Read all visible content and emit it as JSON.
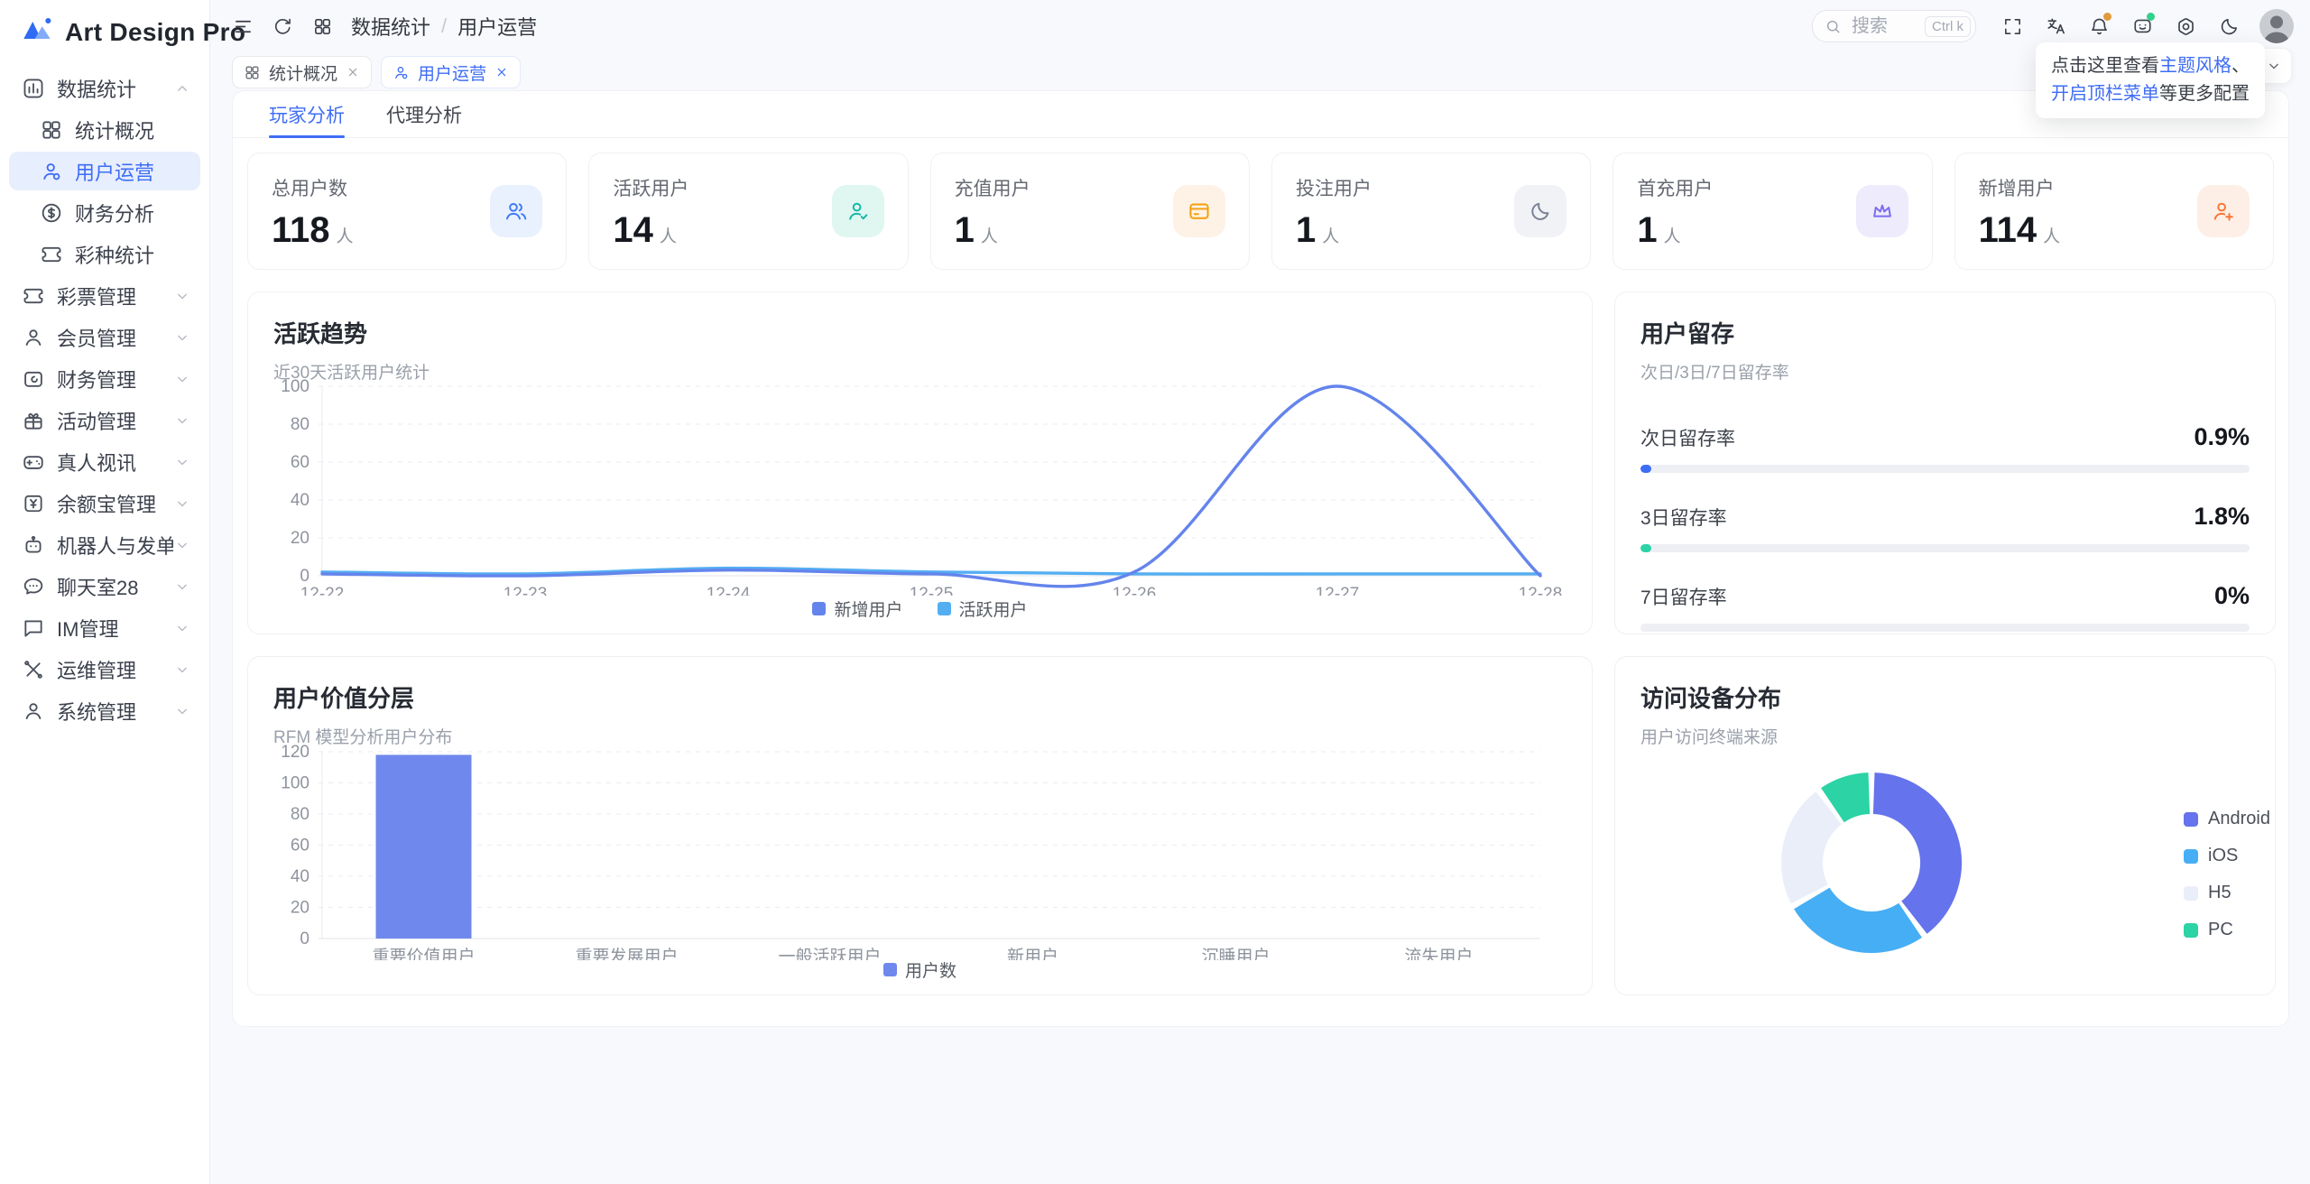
{
  "colors": {
    "accent": "#3E6DF5",
    "page_bg": "#F8F9FC"
  },
  "brand": {
    "name": "Art Design Pro"
  },
  "sidebar": {
    "items": [
      {
        "label": "数据统计",
        "icon": "chart-bar-icon",
        "state": "expanded",
        "children": [
          {
            "label": "统计概况",
            "icon": "grid-icon",
            "active": false
          },
          {
            "label": "用户运营",
            "icon": "user-gear-icon",
            "active": true
          },
          {
            "label": "财务分析",
            "icon": "dollar-circle-icon",
            "active": false
          },
          {
            "label": "彩种统计",
            "icon": "ticket-icon",
            "active": false
          }
        ]
      },
      {
        "label": "彩票管理",
        "icon": "ticket-icon",
        "state": "collapsed"
      },
      {
        "label": "会员管理",
        "icon": "user-icon",
        "state": "collapsed"
      },
      {
        "label": "财务管理",
        "icon": "wallet-icon",
        "state": "collapsed"
      },
      {
        "label": "活动管理",
        "icon": "gift-icon",
        "state": "collapsed"
      },
      {
        "label": "真人视讯",
        "icon": "gamepad-icon",
        "state": "collapsed"
      },
      {
        "label": "余额宝管理",
        "icon": "yen-square-icon",
        "state": "collapsed"
      },
      {
        "label": "机器人与发单",
        "icon": "robot-icon",
        "state": "collapsed"
      },
      {
        "label": "聊天室28",
        "icon": "chat-dots-icon",
        "state": "collapsed"
      },
      {
        "label": "IM管理",
        "icon": "message-icon",
        "state": "collapsed"
      },
      {
        "label": "运维管理",
        "icon": "tools-icon",
        "state": "collapsed"
      },
      {
        "label": "系统管理",
        "icon": "user-cog-icon",
        "state": "collapsed"
      }
    ]
  },
  "header": {
    "breadcrumb": {
      "parent": "数据统计",
      "separator": "/",
      "current": "用户运营"
    },
    "search": {
      "placeholder": "搜索",
      "shortcut": "Ctrl k"
    },
    "tooltip": {
      "line1_text": "点击这里查看",
      "line1_link": "主题风格",
      "line1_suffix": "、",
      "line2_link": "开启顶栏菜单",
      "line2_text": "等更多配置"
    }
  },
  "tab_bar": {
    "tabs": [
      {
        "label": "统计概况",
        "icon": "grid-icon",
        "active": false
      },
      {
        "label": "用户运营",
        "icon": "user-gear-icon",
        "active": true
      }
    ]
  },
  "content": {
    "tabs": [
      {
        "label": "玩家分析",
        "active": true
      },
      {
        "label": "代理分析",
        "active": false
      }
    ],
    "stats": [
      {
        "label": "总用户数",
        "value": "118",
        "unit": "人",
        "icon": "users-icon",
        "color": "#3E7BF6",
        "bg": "#E9F1FE"
      },
      {
        "label": "活跃用户",
        "value": "14",
        "unit": "人",
        "icon": "user-check-icon",
        "color": "#14B8A6",
        "bg": "#E0F6F1"
      },
      {
        "label": "充值用户",
        "value": "1",
        "unit": "人",
        "icon": "wallet-card-icon",
        "color": "#F59E0B",
        "bg": "#FDF2E5"
      },
      {
        "label": "投注用户",
        "value": "1",
        "unit": "人",
        "icon": "crescent-icon",
        "color": "#7A8194",
        "bg": "#F1F2F6"
      },
      {
        "label": "首充用户",
        "value": "1",
        "unit": "人",
        "icon": "crown-icon",
        "color": "#7C6CF0",
        "bg": "#EDEBFC"
      },
      {
        "label": "新增用户",
        "value": "114",
        "unit": "人",
        "icon": "user-plus-icon",
        "color": "#F97633",
        "bg": "#FDEFE6"
      }
    ],
    "retention": {
      "title": "用户留存",
      "subtitle": "次日/3日/7日留存率",
      "rows": [
        {
          "label": "次日留存率",
          "value": "0.9%",
          "percent": 0.9,
          "color": "#3E6DF5"
        },
        {
          "label": "3日留存率",
          "value": "1.8%",
          "percent": 1.8,
          "color": "#2BD3A5"
        },
        {
          "label": "7日留存率",
          "value": "0%",
          "percent": 0,
          "color": "#3E6DF5"
        }
      ]
    }
  },
  "chart_data": [
    {
      "id": "trend",
      "type": "line",
      "title": "活跃趋势",
      "subtitle": "近30天活跃用户统计",
      "x": [
        "12-22",
        "12-23",
        "12-24",
        "12-25",
        "12-26",
        "12-27",
        "12-28"
      ],
      "series": [
        {
          "name": "新增用户",
          "color": "#6484EC",
          "values": [
            1,
            0,
            3,
            1,
            2,
            100,
            0
          ]
        },
        {
          "name": "活跃用户",
          "color": "#54AEF2",
          "values": [
            2,
            1,
            4,
            2,
            1,
            1,
            1
          ]
        }
      ],
      "ylim": [
        0,
        100
      ],
      "yticks": [
        0,
        20,
        40,
        60,
        80,
        100
      ],
      "grid": "dashed",
      "smooth": true,
      "legend_position": "bottom"
    },
    {
      "id": "rfm",
      "type": "bar",
      "title": "用户价值分层",
      "subtitle": "RFM 模型分析用户分布",
      "categories": [
        "重要价值用户",
        "重要发展用户",
        "一般活跃用户",
        "新用户",
        "沉睡用户",
        "流失用户"
      ],
      "series": [
        {
          "name": "用户数",
          "color": "#6F88ED",
          "values": [
            118,
            0,
            0,
            0,
            0,
            0
          ]
        }
      ],
      "ylim": [
        0,
        120
      ],
      "yticks": [
        0,
        20,
        40,
        60,
        80,
        100,
        120
      ],
      "grid": "dashed",
      "legend_position": "bottom"
    },
    {
      "id": "devices",
      "type": "pie",
      "donut": true,
      "title": "访问设备分布",
      "subtitle": "用户访问终端来源",
      "labels": [
        "Android",
        "iOS",
        "H5",
        "PC"
      ],
      "values": [
        40,
        27,
        23,
        10
      ],
      "colors": [
        "#6573EC",
        "#46AEF4",
        "#EAEEF9",
        "#2BD3A5"
      ],
      "legend_position": "right"
    }
  ]
}
